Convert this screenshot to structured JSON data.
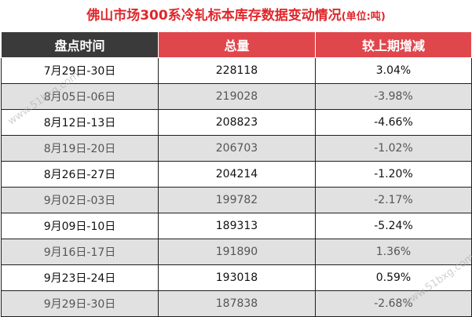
{
  "title": {
    "main": "佛山市场300系冷轧标本库存数据变动情况",
    "unit": "(单位:吨)"
  },
  "headers": {
    "date": "盘点时间",
    "total": "总量",
    "change": "较上期增减"
  },
  "rows": [
    {
      "date": "7月29日-30日",
      "total": "228118",
      "change": "3.04%"
    },
    {
      "date": "8月05日-06日",
      "total": "219028",
      "change": "-3.98%"
    },
    {
      "date": "8月12日-13日",
      "total": "208823",
      "change": "-4.66%"
    },
    {
      "date": "8月19日-20日",
      "total": "206703",
      "change": "-1.02%"
    },
    {
      "date": "8月26日-27日",
      "total": "204214",
      "change": "-1.20%"
    },
    {
      "date": "9月02日-03日",
      "total": "199782",
      "change": "-2.17%"
    },
    {
      "date": "9月09日-10日",
      "total": "189313",
      "change": "-5.24%"
    },
    {
      "date": "9月16日-17日",
      "total": "191890",
      "change": "1.36%"
    },
    {
      "date": "9月23日-24日",
      "total": "193018",
      "change": "0.59%"
    },
    {
      "date": "9月29日-30日",
      "total": "187838",
      "change": "-2.68%"
    }
  ],
  "watermarks": {
    "left": "www.51bxg.com",
    "right": "www.51bxg.com"
  },
  "colors": {
    "title": "#e0262a",
    "header_dark": "#3a3a3a",
    "header_red": "#e0474c",
    "stripe": "#e1e1e1"
  }
}
